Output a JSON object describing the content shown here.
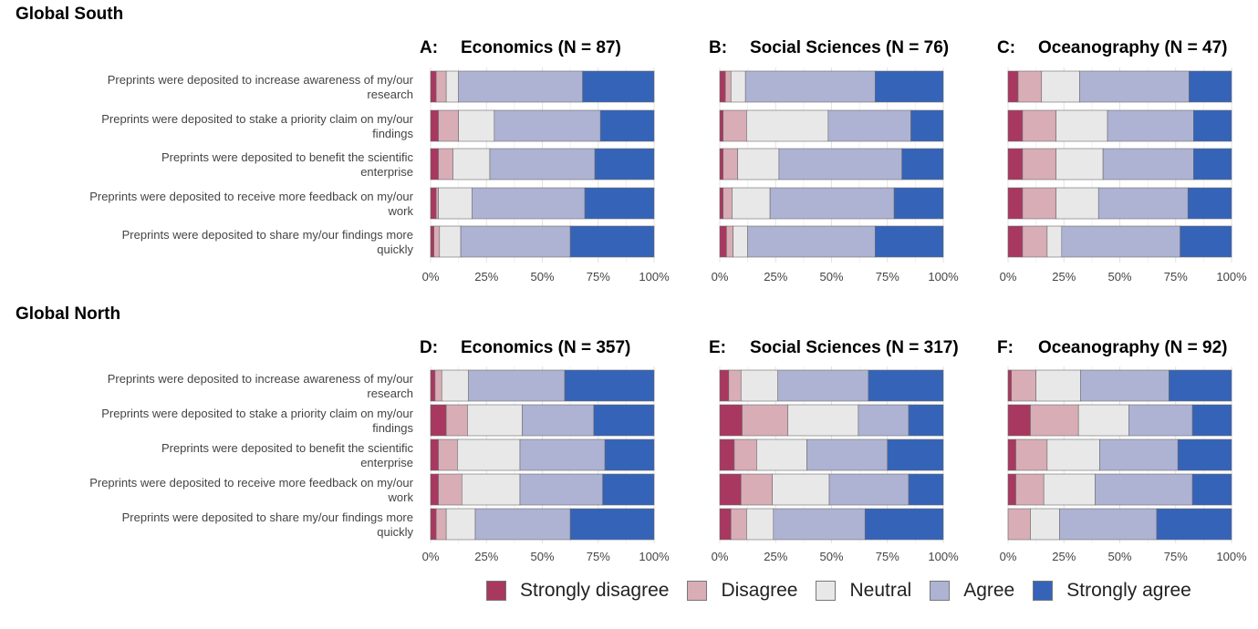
{
  "sections": [
    {
      "title": "Global South"
    },
    {
      "title": "Global North"
    }
  ],
  "statements": [
    [
      "Preprints were deposited to increase awareness of my/our",
      "research"
    ],
    [
      "Preprints were deposited to stake a priority claim on my/our",
      "findings"
    ],
    [
      "Preprints were deposited to benefit the scientific",
      "enterprise"
    ],
    [
      "Preprints were deposited to receive more feedback on my/our",
      "work"
    ],
    [
      "Preprints were deposited to share my/our findings more",
      "quickly"
    ]
  ],
  "chart_data": {
    "type": "stacked-bar-horizontal",
    "x_ticks": [
      "0%",
      "25%",
      "50%",
      "75%",
      "100%"
    ],
    "xlim": [
      0,
      100
    ],
    "legend": [
      {
        "label": "Strongly disagree",
        "color": "#a8385f"
      },
      {
        "label": "Disagree",
        "color": "#d8adb6"
      },
      {
        "label": "Neutral",
        "color": "#e8e8e8"
      },
      {
        "label": "Agree",
        "color": "#aeb3d4"
      },
      {
        "label": "Strongly agree",
        "color": "#3563b8"
      }
    ],
    "panels": [
      {
        "letter": "A:",
        "title": "Economics (N = 87)",
        "region": "Global South",
        "rows": [
          [
            2.5,
            4.5,
            5.5,
            55.5,
            32
          ],
          [
            3.5,
            9,
            16,
            47.5,
            24
          ],
          [
            3.5,
            6.5,
            16.5,
            47,
            26.5
          ],
          [
            2.5,
            1,
            15,
            50.5,
            31
          ],
          [
            1.5,
            2.5,
            9.5,
            49,
            37.5
          ]
        ]
      },
      {
        "letter": "B:",
        "title": "Social Sciences (N = 76)",
        "region": "Global South",
        "rows": [
          [
            2.5,
            2.5,
            6.5,
            58,
            30.5
          ],
          [
            1.5,
            10.5,
            36.5,
            37,
            14.5
          ],
          [
            1.5,
            6.5,
            18.5,
            55,
            18.5
          ],
          [
            1.5,
            4,
            17,
            55.5,
            22
          ],
          [
            3,
            3,
            6.5,
            57,
            30.5
          ]
        ]
      },
      {
        "letter": "C:",
        "title": "Oceanography (N = 47)",
        "region": "Global South",
        "rows": [
          [
            4.5,
            10.5,
            17,
            49,
            19
          ],
          [
            6.5,
            15,
            23,
            38.5,
            17
          ],
          [
            6.5,
            15,
            21,
            40.5,
            17
          ],
          [
            6.5,
            15,
            19,
            40,
            19.5
          ],
          [
            6.5,
            11,
            6.5,
            53,
            23
          ]
        ]
      },
      {
        "letter": "D:",
        "title": "Economics (N = 357)",
        "region": "Global North",
        "rows": [
          [
            2,
            3,
            12,
            43,
            40
          ],
          [
            7,
            9.5,
            24.5,
            32,
            27
          ],
          [
            3.5,
            8.5,
            28,
            38,
            22
          ],
          [
            3.5,
            10.5,
            26,
            37,
            23
          ],
          [
            2.5,
            4.5,
            13,
            42.5,
            37.5
          ]
        ]
      },
      {
        "letter": "E:",
        "title": "Social Sciences (N = 317)",
        "region": "Global North",
        "rows": [
          [
            4,
            5.5,
            16.5,
            40.5,
            33.5
          ],
          [
            10,
            20.5,
            31.5,
            22.5,
            15.5
          ],
          [
            6.5,
            10,
            22.5,
            36,
            25
          ],
          [
            9.5,
            14,
            25.5,
            35.5,
            15.5
          ],
          [
            5,
            7,
            12,
            41,
            35
          ]
        ]
      },
      {
        "letter": "F:",
        "title": "Oceanography (N = 92)",
        "region": "Global North",
        "rows": [
          [
            1.5,
            11,
            20,
            39.5,
            28
          ],
          [
            10,
            21.5,
            22.5,
            28.5,
            17.5
          ],
          [
            3.5,
            14,
            23.5,
            35,
            24
          ],
          [
            3.5,
            12.5,
            23,
            43.5,
            17.5
          ],
          [
            0,
            10,
            13,
            43.5,
            33.5
          ]
        ]
      }
    ]
  }
}
